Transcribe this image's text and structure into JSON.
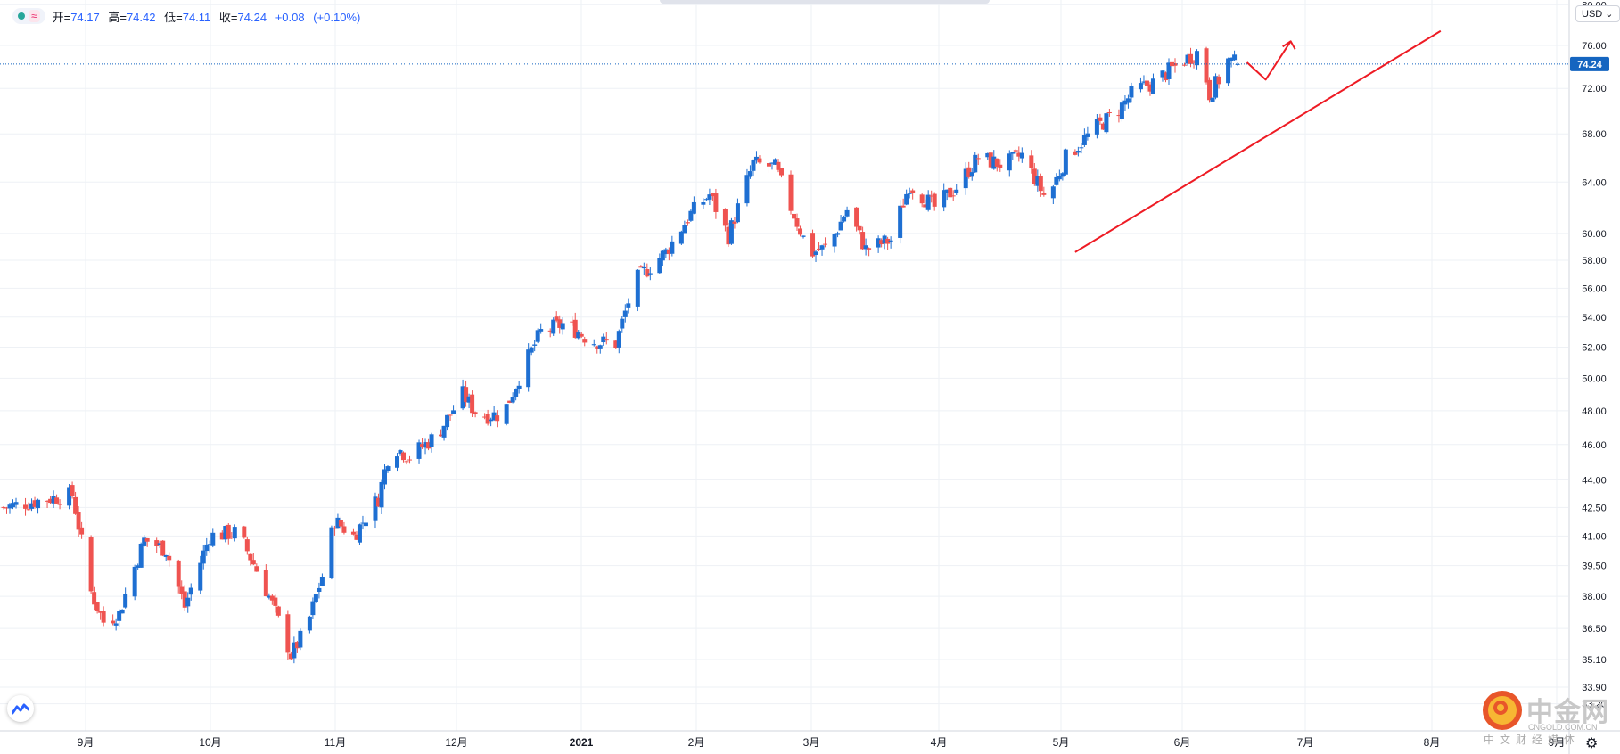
{
  "header": {
    "open_label": "开=",
    "open": "74.17",
    "high_label": "高=",
    "high": "74.42",
    "low_label": "低=",
    "low": "74.11",
    "close_label": "收=",
    "close": "74.24",
    "change": "+0.08",
    "change_pct": "(+0.10%)",
    "currency": "USD"
  },
  "watermark": {
    "name": "中金网",
    "site": "CNGOLD.COM.CN",
    "sub": "中文财经媒体"
  },
  "icons": {
    "logo": "tradingview-logo-icon",
    "settings": "gear-icon",
    "dropdown": "chevron-down-icon"
  },
  "colors": {
    "up": "#1e6fd2",
    "down": "#ef5350",
    "trendline": "#ee1b24",
    "price_line": "#1565c0",
    "grid": "#eef1f5"
  },
  "chart_data": {
    "type": "candlestick",
    "y_axis": {
      "range": [
        33.2,
        80.0
      ],
      "ticks": [
        80.0,
        76.0,
        72.0,
        68.0,
        64.0,
        60.0,
        58.0,
        56.0,
        54.0,
        52.0,
        50.0,
        48.0,
        46.0,
        44.0,
        42.5,
        41.0,
        39.5,
        38.0,
        36.5,
        35.1,
        33.9,
        33.2
      ],
      "tick_labels": [
        "80.00",
        "76.00",
        "72.00",
        "68.00",
        "64.00",
        "60.00",
        "58.00",
        "56.00",
        "54.00",
        "52.00",
        "50.00",
        "48.00",
        "46.00",
        "44.00",
        "42.50",
        "41.00",
        "39.50",
        "38.00",
        "36.50",
        "35.10",
        "33.90",
        "33.20"
      ],
      "scale": "log"
    },
    "x_axis": {
      "tick_labels": [
        "9月",
        "10月",
        "11月",
        "12月",
        "2021",
        "2月",
        "3月",
        "4月",
        "5月",
        "6月",
        "7月",
        "8月",
        "9月"
      ]
    },
    "current_price": "74.24",
    "waypoints": [
      {
        "d": 0,
        "c": 42.5
      },
      {
        "d": 15,
        "c": 43.0
      },
      {
        "d": 22,
        "c": 43.2
      },
      {
        "d": 28,
        "c": 38.2
      },
      {
        "d": 32,
        "c": 36.8
      },
      {
        "d": 37,
        "c": 37.2
      },
      {
        "d": 45,
        "c": 40.8
      },
      {
        "d": 52,
        "c": 40.3
      },
      {
        "d": 58,
        "c": 37.5
      },
      {
        "d": 66,
        "c": 41.0
      },
      {
        "d": 75,
        "c": 41.2
      },
      {
        "d": 85,
        "c": 38.0
      },
      {
        "d": 92,
        "c": 35.3
      },
      {
        "d": 97,
        "c": 36.5
      },
      {
        "d": 102,
        "c": 39.0
      },
      {
        "d": 106,
        "c": 41.8
      },
      {
        "d": 112,
        "c": 41.0
      },
      {
        "d": 120,
        "c": 43.0
      },
      {
        "d": 124,
        "c": 46.0
      },
      {
        "d": 130,
        "c": 45.3
      },
      {
        "d": 139,
        "c": 46.6
      },
      {
        "d": 147,
        "c": 49.0
      },
      {
        "d": 152,
        "c": 47.7
      },
      {
        "d": 160,
        "c": 47.8
      },
      {
        "d": 166,
        "c": 50.5
      },
      {
        "d": 172,
        "c": 53.0
      },
      {
        "d": 180,
        "c": 53.6
      },
      {
        "d": 188,
        "c": 52.4
      },
      {
        "d": 196,
        "c": 52.2
      },
      {
        "d": 202,
        "c": 56.5
      },
      {
        "d": 212,
        "c": 58.6
      },
      {
        "d": 220,
        "c": 61.5
      },
      {
        "d": 226,
        "c": 63.0
      },
      {
        "d": 232,
        "c": 59.8
      },
      {
        "d": 240,
        "c": 65.5
      },
      {
        "d": 247,
        "c": 65.2
      },
      {
        "d": 252,
        "c": 62.0
      },
      {
        "d": 258,
        "c": 58.5
      },
      {
        "d": 264,
        "c": 59.0
      },
      {
        "d": 270,
        "c": 61.8
      },
      {
        "d": 276,
        "c": 58.8
      },
      {
        "d": 284,
        "c": 59.5
      },
      {
        "d": 290,
        "c": 63.8
      },
      {
        "d": 298,
        "c": 62.0
      },
      {
        "d": 305,
        "c": 63.6
      },
      {
        "d": 312,
        "c": 66.0
      },
      {
        "d": 320,
        "c": 65.4
      },
      {
        "d": 326,
        "c": 66.2
      },
      {
        "d": 334,
        "c": 62.5
      },
      {
        "d": 340,
        "c": 66.0
      },
      {
        "d": 350,
        "c": 68.6
      },
      {
        "d": 356,
        "c": 69.8
      },
      {
        "d": 362,
        "c": 71.8
      },
      {
        "d": 368,
        "c": 72.5
      },
      {
        "d": 374,
        "c": 73.8
      },
      {
        "d": 378,
        "c": 74.6
      },
      {
        "d": 383,
        "c": 75.5
      },
      {
        "d": 386,
        "c": 71.5
      },
      {
        "d": 389,
        "c": 72.8
      },
      {
        "d": 392,
        "c": 74.6
      },
      {
        "d": 395,
        "c": 74.24
      }
    ],
    "trendline": {
      "from": {
        "d": 343,
        "price": 58.6
      },
      "to": {
        "d": 460,
        "price": 77.4
      }
    },
    "arrow_path": [
      {
        "d": 398,
        "price": 74.4
      },
      {
        "d": 404,
        "price": 72.8
      },
      {
        "d": 412,
        "price": 76.4
      }
    ]
  }
}
